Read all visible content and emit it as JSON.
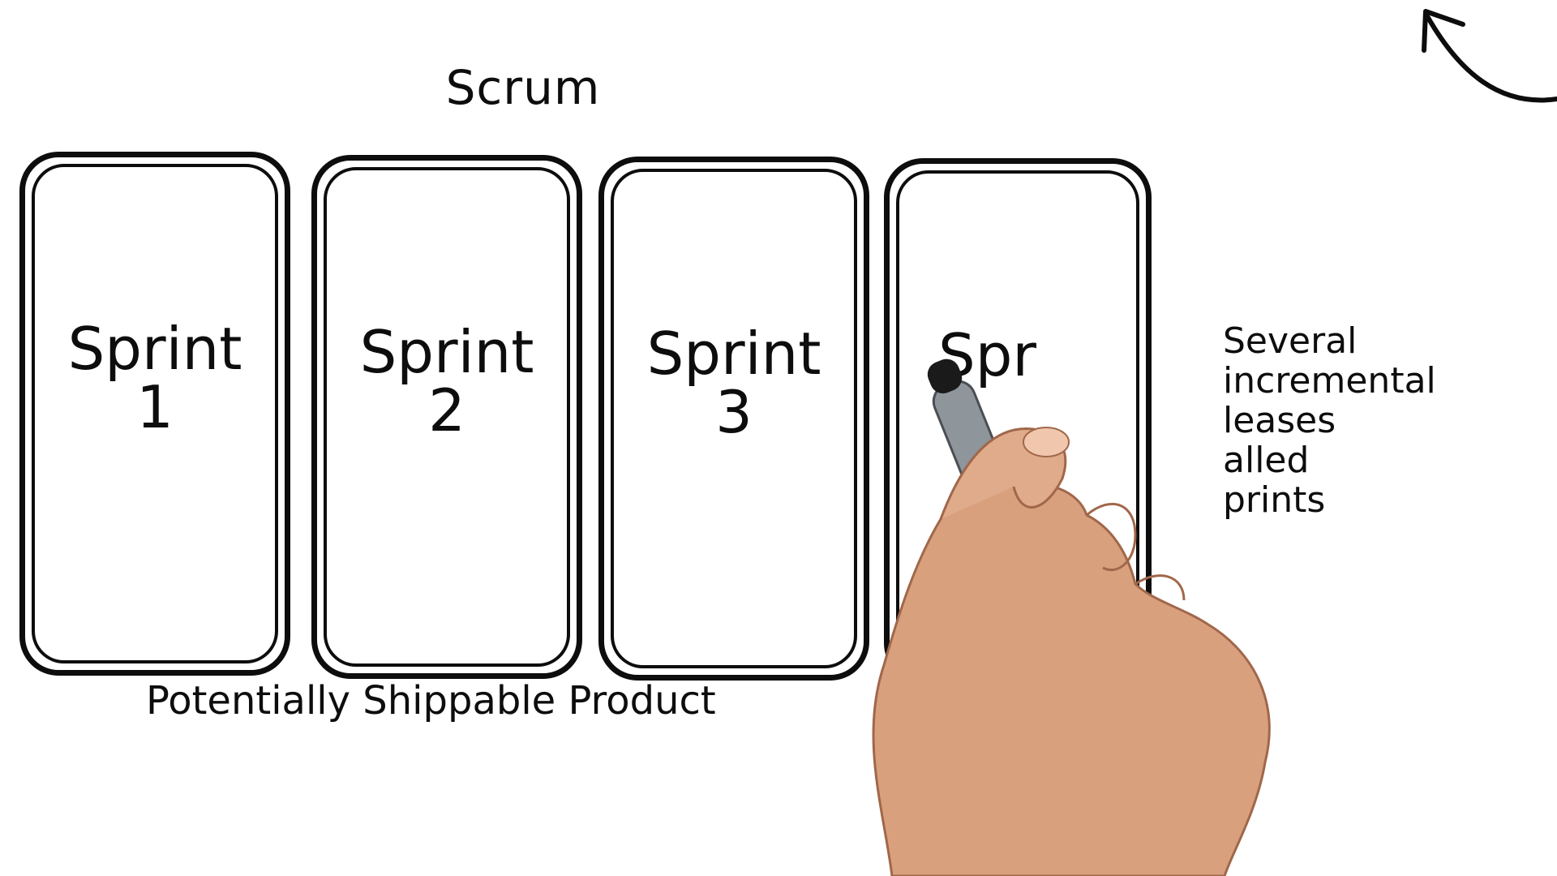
{
  "slide": {
    "title": "Scrum",
    "cards": [
      {
        "line1": "Sprint",
        "line2": "1"
      },
      {
        "line1": "Sprint",
        "line2": "2"
      },
      {
        "line1": "Sprint",
        "line2": "3"
      },
      {
        "line1": "Spr",
        "line2": ""
      }
    ],
    "caption": "Potentially Shippable Product",
    "side_note": {
      "line1": "Several",
      "line2": "incremental",
      "line3": "leases",
      "line4": "alled",
      "line5": "prints"
    },
    "icons": {
      "arrow": "curved-arrow-icon",
      "hand": "hand-with-marker-icon"
    },
    "colors": {
      "ink": "#0d0d0d",
      "background": "#ffffff",
      "skin": "#d9a07e",
      "marker": "#8e959b"
    }
  }
}
